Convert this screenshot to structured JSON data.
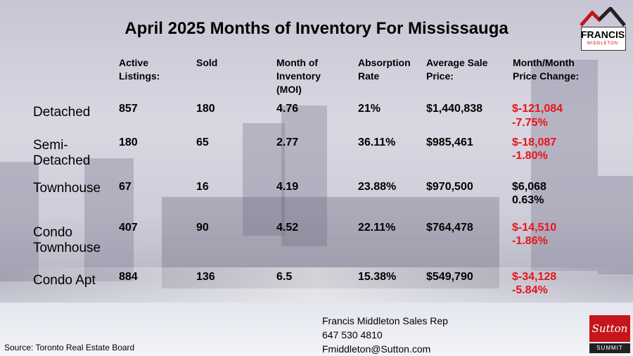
{
  "chart_data": {
    "type": "table",
    "title": "April 2025 Months of Inventory For Mississauga",
    "columns": [
      "",
      "Active Listings:",
      "Sold",
      "Month of Inventory (MOI)",
      "Absorption Rate",
      "Average Sale Price:",
      "Month/Month Price Change:"
    ],
    "rows": [
      {
        "label": "Detached",
        "active": "857",
        "sold": "180",
        "moi": "4.76",
        "absorption": "21%",
        "avg_price": "$1,440,838",
        "change_amount": "$-121,084",
        "change_pct": "-7.75%",
        "change_dir": "neg"
      },
      {
        "label": "Semi-Detached",
        "active": "180",
        "sold": "65",
        "moi": "2.77",
        "absorption": "36.11%",
        "avg_price": "$985,461",
        "change_amount": "$-18,087",
        "change_pct": "-1.80%",
        "change_dir": "neg"
      },
      {
        "label": "Townhouse",
        "active": "67",
        "sold": "16",
        "moi": "4.19",
        "absorption": "23.88%",
        "avg_price": "$970,500",
        "change_amount": "$6,068",
        "change_pct": "0.63%",
        "change_dir": "pos"
      },
      {
        "label": "Condo Townhouse",
        "active": "407",
        "sold": "90",
        "moi": "4.52",
        "absorption": "22.11%",
        "avg_price": "$764,478",
        "change_amount": "$-14,510",
        "change_pct": "-1.86%",
        "change_dir": "neg"
      },
      {
        "label": "Condo Apt",
        "active": "884",
        "sold": "136",
        "moi": "6.5",
        "absorption": "15.38%",
        "avg_price": "$549,790",
        "change_amount": "$-34,128",
        "change_pct": "-5.84%",
        "change_dir": "neg"
      }
    ],
    "colors": {
      "negative": "#e8141b",
      "positive": "#000000"
    }
  },
  "headers": {
    "active": [
      "Active",
      "Listings:"
    ],
    "sold": [
      "Sold"
    ],
    "moi": [
      "Month of",
      "Inventory",
      "(MOI)"
    ],
    "absorption": [
      "Absorption",
      "Rate"
    ],
    "avg_price": [
      "Average Sale",
      "Price:"
    ],
    "change": [
      "Month/Month",
      "Price Change:"
    ]
  },
  "row_label_lines": {
    "semi": [
      "Semi-",
      "Detached"
    ],
    "condo_th": [
      "Condo",
      "Townhouse"
    ]
  },
  "source": "Source: Toronto Real Estate Board",
  "contact": {
    "name": "Francis Middleton Sales Rep",
    "phone": "647 530 4810",
    "email": "Fmiddleton@Sutton.com"
  },
  "logos": {
    "francis": {
      "name": "FRANCIS",
      "sub": "MIDDLETON"
    },
    "sutton": {
      "name": "Sutton",
      "sub": "SUMMIT"
    }
  }
}
